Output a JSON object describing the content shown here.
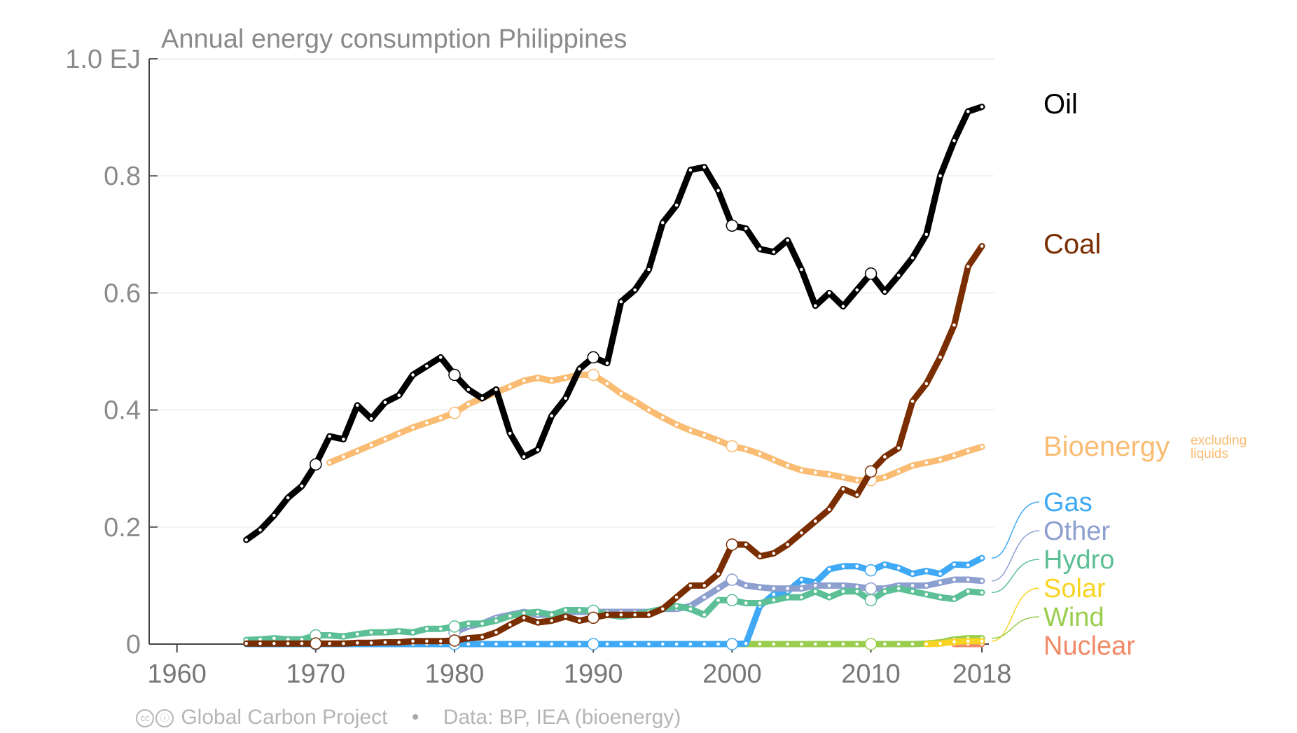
{
  "chart_data": {
    "type": "line",
    "title": "Annual energy consumption Philippines",
    "y_unit": "EJ",
    "ylim": [
      0,
      1.0
    ],
    "y_ticks": [
      {
        "value": 0,
        "label": "0"
      },
      {
        "value": 0.2,
        "label": "0.2"
      },
      {
        "value": 0.4,
        "label": "0.4"
      },
      {
        "value": 0.6,
        "label": "0.6"
      },
      {
        "value": 0.8,
        "label": "0.8"
      },
      {
        "value": 1.0,
        "label": "1.0 EJ"
      }
    ],
    "xlim": [
      1958,
      2018.5
    ],
    "x_ticks": [
      {
        "value": 1960,
        "label": "1960"
      },
      {
        "value": 1970,
        "label": "1970"
      },
      {
        "value": 1980,
        "label": "1980"
      },
      {
        "value": 1990,
        "label": "1990"
      },
      {
        "value": 2000,
        "label": "2000"
      },
      {
        "value": 2010,
        "label": "2010"
      },
      {
        "value": 2018,
        "label": "2018"
      }
    ],
    "grid": true,
    "legend_placement": "right (direct labels)",
    "series": [
      {
        "name": "Nuclear",
        "color": "#f08a67",
        "x": [
          2016,
          2017,
          2018
        ],
        "values": [
          0,
          0,
          0
        ]
      },
      {
        "name": "Wind",
        "color": "#9acd4e",
        "x": [
          2000,
          2001,
          2002,
          2003,
          2004,
          2005,
          2006,
          2007,
          2008,
          2009,
          2010,
          2011,
          2012,
          2013,
          2014,
          2015,
          2016,
          2017,
          2018
        ],
        "values": [
          0,
          0,
          0,
          0,
          0,
          0,
          0,
          0,
          0,
          0,
          0,
          0,
          0,
          0,
          0.001,
          0.003,
          0.008,
          0.01,
          0.01
        ]
      },
      {
        "name": "Solar",
        "color": "#f7d423",
        "x": [
          2014,
          2015,
          2016,
          2017,
          2018
        ],
        "values": [
          0,
          0.001,
          0.004,
          0.005,
          0.005
        ]
      },
      {
        "name": "Gas",
        "color": "#3fa9f5",
        "x": [
          1965,
          1966,
          1967,
          1968,
          1969,
          1970,
          1971,
          1972,
          1973,
          1974,
          1975,
          1976,
          1977,
          1978,
          1979,
          1980,
          1981,
          1982,
          1983,
          1984,
          1985,
          1986,
          1987,
          1988,
          1989,
          1990,
          1991,
          1992,
          1993,
          1994,
          1995,
          1996,
          1997,
          1998,
          1999,
          2000,
          2001,
          2002,
          2003,
          2004,
          2005,
          2006,
          2007,
          2008,
          2009,
          2010,
          2011,
          2012,
          2013,
          2014,
          2015,
          2016,
          2017,
          2018
        ],
        "values": [
          0,
          0,
          0,
          0,
          0,
          0,
          0,
          0,
          0,
          0,
          0,
          0,
          0,
          0,
          0,
          0,
          0,
          0,
          0,
          0,
          0,
          0,
          0,
          0,
          0,
          0,
          0,
          0,
          0,
          0,
          0,
          0,
          0,
          0,
          0,
          0,
          0.001,
          0.065,
          0.085,
          0.09,
          0.11,
          0.105,
          0.128,
          0.133,
          0.133,
          0.126,
          0.136,
          0.13,
          0.12,
          0.125,
          0.12,
          0.136,
          0.135,
          0.147
        ]
      },
      {
        "name": "Other",
        "color": "#8c9fcf",
        "x": [
          1980,
          1981,
          1982,
          1983,
          1984,
          1985,
          1986,
          1987,
          1988,
          1989,
          1990,
          1991,
          1992,
          1993,
          1994,
          1995,
          1996,
          1997,
          1998,
          1999,
          2000,
          2001,
          2002,
          2003,
          2004,
          2005,
          2006,
          2007,
          2008,
          2009,
          2010,
          2011,
          2012,
          2013,
          2014,
          2015,
          2016,
          2017,
          2018
        ],
        "values": [
          0.02,
          0.03,
          0.035,
          0.045,
          0.05,
          0.055,
          0.05,
          0.05,
          0.055,
          0.055,
          0.055,
          0.055,
          0.055,
          0.055,
          0.055,
          0.06,
          0.06,
          0.065,
          0.08,
          0.095,
          0.11,
          0.1,
          0.097,
          0.095,
          0.095,
          0.095,
          0.1,
          0.1,
          0.1,
          0.098,
          0.095,
          0.095,
          0.1,
          0.1,
          0.1,
          0.105,
          0.11,
          0.11,
          0.108
        ]
      },
      {
        "name": "Hydro",
        "color": "#5cbf95",
        "x": [
          1965,
          1966,
          1967,
          1968,
          1969,
          1970,
          1971,
          1972,
          1973,
          1974,
          1975,
          1976,
          1977,
          1978,
          1979,
          1980,
          1981,
          1982,
          1983,
          1984,
          1985,
          1986,
          1987,
          1988,
          1989,
          1990,
          1991,
          1992,
          1993,
          1994,
          1995,
          1996,
          1997,
          1998,
          1999,
          2000,
          2001,
          2002,
          2003,
          2004,
          2005,
          2006,
          2007,
          2008,
          2009,
          2010,
          2011,
          2012,
          2013,
          2014,
          2015,
          2016,
          2017,
          2018
        ],
        "values": [
          0.007,
          0.008,
          0.01,
          0.008,
          0.008,
          0.015,
          0.015,
          0.013,
          0.017,
          0.02,
          0.02,
          0.022,
          0.02,
          0.026,
          0.026,
          0.03,
          0.035,
          0.035,
          0.04,
          0.048,
          0.053,
          0.055,
          0.05,
          0.058,
          0.058,
          0.057,
          0.05,
          0.047,
          0.05,
          0.055,
          0.06,
          0.065,
          0.06,
          0.05,
          0.075,
          0.075,
          0.07,
          0.07,
          0.075,
          0.08,
          0.08,
          0.09,
          0.08,
          0.09,
          0.09,
          0.075,
          0.09,
          0.095,
          0.09,
          0.085,
          0.08,
          0.077,
          0.09,
          0.088
        ]
      },
      {
        "name": "Bioenergy",
        "note": "excluding liquids",
        "color": "#f9bc72",
        "x": [
          1971,
          1972,
          1973,
          1974,
          1975,
          1976,
          1977,
          1978,
          1979,
          1980,
          1981,
          1982,
          1983,
          1984,
          1985,
          1986,
          1987,
          1988,
          1989,
          1990,
          1991,
          1992,
          1993,
          1994,
          1995,
          1996,
          1997,
          1998,
          1999,
          2000,
          2001,
          2002,
          2003,
          2004,
          2005,
          2006,
          2007,
          2008,
          2009,
          2010,
          2011,
          2012,
          2013,
          2014,
          2015,
          2016,
          2017,
          2018
        ],
        "values": [
          0.31,
          0.32,
          0.33,
          0.34,
          0.35,
          0.36,
          0.37,
          0.378,
          0.386,
          0.395,
          0.41,
          0.42,
          0.43,
          0.44,
          0.45,
          0.455,
          0.45,
          0.455,
          0.46,
          0.46,
          0.445,
          0.428,
          0.415,
          0.4,
          0.387,
          0.375,
          0.365,
          0.357,
          0.348,
          0.338,
          0.333,
          0.325,
          0.315,
          0.305,
          0.297,
          0.293,
          0.29,
          0.285,
          0.28,
          0.28,
          0.285,
          0.295,
          0.305,
          0.31,
          0.315,
          0.322,
          0.33,
          0.337
        ]
      },
      {
        "name": "Coal",
        "color": "#7a2d00",
        "x": [
          1965,
          1966,
          1967,
          1968,
          1969,
          1970,
          1971,
          1972,
          1973,
          1974,
          1975,
          1976,
          1977,
          1978,
          1979,
          1980,
          1981,
          1982,
          1983,
          1984,
          1985,
          1986,
          1987,
          1988,
          1989,
          1990,
          1991,
          1992,
          1993,
          1994,
          1995,
          1996,
          1997,
          1998,
          1999,
          2000,
          2001,
          2002,
          2003,
          2004,
          2005,
          2006,
          2007,
          2008,
          2009,
          2010,
          2011,
          2012,
          2013,
          2014,
          2015,
          2016,
          2017,
          2018
        ],
        "values": [
          0.001,
          0.001,
          0.001,
          0.001,
          0.001,
          0.001,
          0.001,
          0.001,
          0.002,
          0.002,
          0.003,
          0.003,
          0.005,
          0.005,
          0.005,
          0.006,
          0.01,
          0.012,
          0.02,
          0.033,
          0.045,
          0.037,
          0.04,
          0.047,
          0.04,
          0.045,
          0.05,
          0.05,
          0.05,
          0.05,
          0.06,
          0.08,
          0.1,
          0.1,
          0.12,
          0.17,
          0.17,
          0.15,
          0.155,
          0.17,
          0.19,
          0.21,
          0.23,
          0.265,
          0.255,
          0.295,
          0.32,
          0.335,
          0.415,
          0.445,
          0.49,
          0.545,
          0.645,
          0.68
        ]
      },
      {
        "name": "Oil",
        "color": "#000000",
        "x": [
          1965,
          1966,
          1967,
          1968,
          1969,
          1970,
          1971,
          1972,
          1973,
          1974,
          1975,
          1976,
          1977,
          1978,
          1979,
          1980,
          1981,
          1982,
          1983,
          1984,
          1985,
          1986,
          1987,
          1988,
          1989,
          1990,
          1991,
          1992,
          1993,
          1994,
          1995,
          1996,
          1997,
          1998,
          1999,
          2000,
          2001,
          2002,
          2003,
          2004,
          2005,
          2006,
          2007,
          2008,
          2009,
          2010,
          2011,
          2012,
          2013,
          2014,
          2015,
          2016,
          2017,
          2018
        ],
        "values": [
          0.178,
          0.195,
          0.22,
          0.25,
          0.27,
          0.307,
          0.355,
          0.35,
          0.408,
          0.385,
          0.413,
          0.425,
          0.46,
          0.475,
          0.49,
          0.46,
          0.435,
          0.42,
          0.435,
          0.36,
          0.32,
          0.332,
          0.39,
          0.42,
          0.47,
          0.49,
          0.48,
          0.585,
          0.605,
          0.64,
          0.72,
          0.75,
          0.81,
          0.815,
          0.775,
          0.715,
          0.71,
          0.675,
          0.67,
          0.69,
          0.64,
          0.578,
          0.6,
          0.577,
          0.605,
          0.633,
          0.602,
          0.63,
          0.66,
          0.7,
          0.8,
          0.86,
          0.91,
          0.918
        ]
      }
    ],
    "labels": [
      {
        "text": "Oil",
        "series": "Oil"
      },
      {
        "text": "Coal",
        "series": "Coal"
      },
      {
        "text": "Bioenergy",
        "series": "Bioenergy"
      },
      {
        "text": "Gas",
        "series": "Gas"
      },
      {
        "text": "Other",
        "series": "Other"
      },
      {
        "text": "Hydro",
        "series": "Hydro"
      },
      {
        "text": "Solar",
        "series": "Solar"
      },
      {
        "text": "Wind",
        "series": "Wind"
      },
      {
        "text": "Nuclear",
        "series": "Nuclear"
      }
    ],
    "bioenergy_note": [
      "excluding",
      "liquids"
    ]
  },
  "footer": {
    "cc_icons": [
      "cc-icon",
      "by-icon"
    ],
    "credit": "Global Carbon Project",
    "separator": "•",
    "source": "Data: BP, IEA (bioenergy)"
  }
}
